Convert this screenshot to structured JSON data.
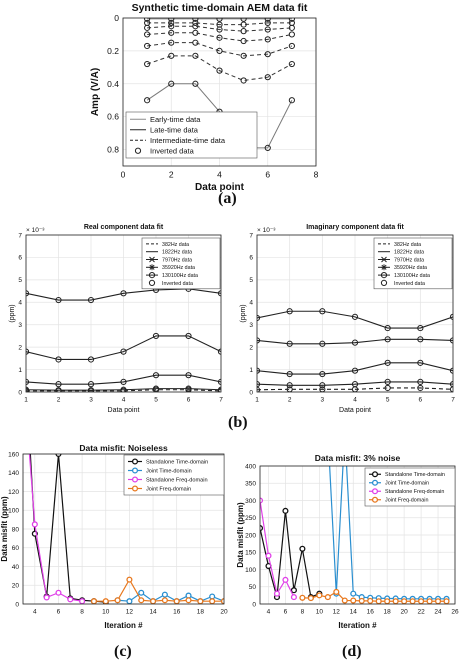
{
  "panel_labels": [
    "(a)",
    "(b)",
    "(c)",
    "(d)"
  ],
  "chart_data": [
    {
      "id": "a",
      "type": "line",
      "title": "Synthetic time-domain AEM data fit",
      "xlabel": "Data point",
      "ylabel": "Amp (V/A)",
      "xlim": [
        0,
        8
      ],
      "ylim": [
        0,
        0.9
      ],
      "y_reversed": true,
      "xticks": [
        0,
        2,
        4,
        6,
        8
      ],
      "yticks": [
        0,
        0.2,
        0.4,
        0.6,
        0.8
      ],
      "grid": true,
      "legend": {
        "position": "bottom-left",
        "entries": [
          {
            "label": "Early-time data",
            "style": "solid",
            "color": "#8a8a8a"
          },
          {
            "label": "Late-time data",
            "style": "solid",
            "color": "#222222"
          },
          {
            "label": "Intermediate-time data",
            "style": "dashed",
            "color": "#222222"
          },
          {
            "label": "Inverted data",
            "style": "marker",
            "color": "#222222"
          }
        ]
      },
      "x": [
        1,
        2,
        3,
        4,
        5,
        6,
        7
      ],
      "series": [
        {
          "style": "solid",
          "color": "#8a8a8a",
          "values": [
            0.005,
            0.005,
            0.005,
            0.005,
            0.005,
            0.005,
            0.005
          ]
        },
        {
          "style": "dashed",
          "color": "#333333",
          "values": [
            0.03,
            0.03,
            0.03,
            0.04,
            0.04,
            0.03,
            0.03
          ]
        },
        {
          "style": "dashed",
          "color": "#333333",
          "values": [
            0.06,
            0.05,
            0.05,
            0.07,
            0.08,
            0.07,
            0.06
          ]
        },
        {
          "style": "dashed",
          "color": "#333333",
          "values": [
            0.1,
            0.09,
            0.09,
            0.12,
            0.14,
            0.13,
            0.1
          ]
        },
        {
          "style": "dashed",
          "color": "#333333",
          "values": [
            0.17,
            0.15,
            0.15,
            0.2,
            0.23,
            0.22,
            0.17
          ]
        },
        {
          "style": "dashed",
          "color": "#333333",
          "values": [
            0.28,
            0.23,
            0.23,
            0.32,
            0.38,
            0.36,
            0.28
          ]
        },
        {
          "style": "solid",
          "color": "#7a7a7a",
          "values": [
            0.5,
            0.4,
            0.4,
            0.57,
            0.79,
            0.79,
            0.5
          ]
        }
      ]
    },
    {
      "id": "b1",
      "type": "line",
      "title": "Real component data fit",
      "xlabel": "Data point",
      "ylabel": "(ppm)",
      "exponent_label": "× 10⁻³",
      "xlim": [
        1,
        7
      ],
      "ylim": [
        0,
        7
      ],
      "xticks": [
        1,
        2,
        3,
        4,
        5,
        6,
        7
      ],
      "yticks": [
        0,
        1,
        2,
        3,
        4,
        5,
        6,
        7
      ],
      "grid": true,
      "legend": {
        "position": "top-right",
        "entries": [
          {
            "label": "382Hz data",
            "style": "dashed",
            "marker": ""
          },
          {
            "label": "1822Hz data",
            "style": "solid",
            "marker": ""
          },
          {
            "label": "7970Hz data",
            "style": "solid",
            "marker": "x"
          },
          {
            "label": "35920Hz data",
            "style": "solid",
            "marker": "*"
          },
          {
            "label": "130100Hz data",
            "style": "solid",
            "marker": "o"
          },
          {
            "label": "Inverted data",
            "style": "none",
            "marker": "o"
          }
        ]
      },
      "x": [
        1,
        2,
        3,
        4,
        5,
        6,
        7
      ],
      "series": [
        {
          "style": "dashed",
          "values": [
            0.05,
            0.05,
            0.05,
            0.05,
            0.1,
            0.1,
            0.05
          ]
        },
        {
          "style": "solid",
          "values": [
            0.1,
            0.08,
            0.08,
            0.1,
            0.15,
            0.15,
            0.1
          ]
        },
        {
          "style": "solid",
          "values": [
            0.45,
            0.35,
            0.35,
            0.45,
            0.75,
            0.75,
            0.45
          ]
        },
        {
          "style": "solid",
          "values": [
            1.8,
            1.45,
            1.45,
            1.8,
            2.5,
            2.5,
            1.8
          ]
        },
        {
          "style": "solid",
          "values": [
            4.4,
            4.1,
            4.1,
            4.4,
            4.55,
            4.6,
            4.4
          ]
        }
      ]
    },
    {
      "id": "b2",
      "type": "line",
      "title": "Imaginary component data fit",
      "xlabel": "Data point",
      "ylabel": "(ppm)",
      "exponent_label": "× 10⁻³",
      "xlim": [
        1,
        7
      ],
      "ylim": [
        0,
        7
      ],
      "xticks": [
        1,
        2,
        3,
        4,
        5,
        6,
        7
      ],
      "yticks": [
        0,
        1,
        2,
        3,
        4,
        5,
        6,
        7
      ],
      "grid": true,
      "legend": {
        "position": "top-right",
        "entries": [
          {
            "label": "382Hz data",
            "style": "dashed",
            "marker": ""
          },
          {
            "label": "1822Hz data",
            "style": "solid",
            "marker": ""
          },
          {
            "label": "7970Hz data",
            "style": "solid",
            "marker": "x"
          },
          {
            "label": "35920Hz data",
            "style": "solid",
            "marker": "*"
          },
          {
            "label": "130100Hz data",
            "style": "solid",
            "marker": "o"
          },
          {
            "label": "Inverted data",
            "style": "none",
            "marker": "o"
          }
        ]
      },
      "x": [
        1,
        2,
        3,
        4,
        5,
        6,
        7
      ],
      "series": [
        {
          "style": "dashed",
          "values": [
            0.1,
            0.12,
            0.12,
            0.12,
            0.18,
            0.18,
            0.12
          ]
        },
        {
          "style": "solid",
          "values": [
            0.35,
            0.3,
            0.3,
            0.35,
            0.45,
            0.45,
            0.35
          ]
        },
        {
          "style": "solid",
          "values": [
            0.95,
            0.8,
            0.8,
            0.95,
            1.3,
            1.3,
            0.95
          ]
        },
        {
          "style": "solid",
          "values": [
            2.3,
            2.15,
            2.15,
            2.2,
            2.35,
            2.35,
            2.3
          ]
        },
        {
          "style": "solid",
          "values": [
            3.3,
            3.6,
            3.6,
            3.35,
            2.85,
            2.85,
            3.35
          ]
        }
      ]
    },
    {
      "id": "c",
      "type": "line",
      "title": "Data misfit: Noiseless",
      "xlabel": "Iteration #",
      "ylabel": "Data misfit (ppm)",
      "xlim": [
        3,
        20
      ],
      "ylim": [
        0,
        160
      ],
      "xticks": [
        4,
        6,
        8,
        10,
        12,
        14,
        16,
        18,
        20
      ],
      "yticks": [
        0,
        20,
        40,
        60,
        80,
        100,
        120,
        140,
        160
      ],
      "grid": true,
      "legend": {
        "position": "top-right",
        "entries": [
          {
            "label": "Standalone Time-domain",
            "color": "#111111"
          },
          {
            "label": "Joint Time-domain",
            "color": "#2a8fd0"
          },
          {
            "label": "Standalone Freq-domain",
            "color": "#e040e8"
          },
          {
            "label": "Joint Freq-domain",
            "color": "#e8781e"
          }
        ]
      },
      "series": [
        {
          "name": "Standalone Time-domain",
          "color": "#111111",
          "x": [
            3,
            4,
            5,
            6,
            7,
            8,
            9,
            10
          ],
          "values": [
            300,
            75,
            8,
            160,
            6,
            4,
            3,
            2
          ]
        },
        {
          "name": "Joint Time-domain",
          "color": "#2a8fd0",
          "x": [
            11,
            12,
            13,
            14,
            15,
            16,
            17,
            18,
            19,
            20
          ],
          "values": [
            4,
            3,
            12,
            3,
            10,
            3,
            9,
            3,
            8,
            3
          ]
        },
        {
          "name": "Standalone Freq-domain",
          "color": "#e040e8",
          "x": [
            3,
            4,
            5,
            6,
            7,
            8
          ],
          "values": [
            250,
            85,
            7,
            12,
            5,
            3
          ]
        },
        {
          "name": "Joint Freq-domain",
          "color": "#e8781e",
          "x": [
            9,
            10,
            11,
            12,
            13,
            14,
            15,
            16,
            17,
            18,
            19,
            20
          ],
          "values": [
            3,
            3,
            4,
            26,
            4,
            3,
            4,
            3,
            4,
            3,
            3,
            3
          ]
        }
      ]
    },
    {
      "id": "d",
      "type": "line",
      "title": "Data misfit: 3% noise",
      "xlabel": "Iteration #",
      "ylabel": "Data misfit (ppm)",
      "xlim": [
        3,
        26
      ],
      "ylim": [
        0,
        400
      ],
      "xticks": [
        4,
        6,
        8,
        10,
        12,
        14,
        16,
        18,
        20,
        22,
        24,
        26
      ],
      "xticklabels": [
        "4",
        "6",
        "8",
        "10",
        "12",
        "14",
        "16",
        "18",
        "20",
        "22",
        "24",
        "26"
      ],
      "yticks": [
        0,
        50,
        100,
        150,
        200,
        250,
        300,
        350,
        400
      ],
      "grid": true,
      "legend": {
        "position": "top-right",
        "entries": [
          {
            "label": "Standalone Time-domain",
            "color": "#111111"
          },
          {
            "label": "Joint Time-domain",
            "color": "#2a8fd0"
          },
          {
            "label": "Standalone Freq-domain",
            "color": "#e040e8"
          },
          {
            "label": "Joint Freq-domain",
            "color": "#e8781e"
          }
        ]
      },
      "series": [
        {
          "name": "Standalone Time-domain",
          "color": "#111111",
          "x": [
            3,
            4,
            5,
            6,
            7,
            8,
            9,
            10
          ],
          "values": [
            220,
            110,
            20,
            270,
            40,
            160,
            20,
            30
          ]
        },
        {
          "name": "Joint Time-domain",
          "color": "#2a8fd0",
          "x": [
            11,
            12,
            13,
            14,
            15,
            16,
            17,
            18,
            19,
            20,
            21,
            22,
            23,
            24,
            25
          ],
          "values": [
            500,
            30,
            500,
            30,
            20,
            18,
            17,
            16,
            16,
            15,
            15,
            15,
            15,
            15,
            15
          ]
        },
        {
          "name": "Standalone Freq-domain",
          "color": "#e040e8",
          "x": [
            3,
            4,
            5,
            6,
            7
          ],
          "values": [
            300,
            140,
            30,
            70,
            20
          ]
        },
        {
          "name": "Joint Freq-domain",
          "color": "#e8781e",
          "x": [
            8,
            9,
            10,
            11,
            12,
            13,
            14,
            15,
            16,
            17,
            18,
            19,
            20,
            21,
            22,
            23,
            24,
            25
          ],
          "values": [
            18,
            17,
            25,
            20,
            35,
            10,
            10,
            9,
            9,
            8,
            8,
            8,
            8,
            8,
            8,
            8,
            8,
            8
          ]
        }
      ]
    }
  ]
}
